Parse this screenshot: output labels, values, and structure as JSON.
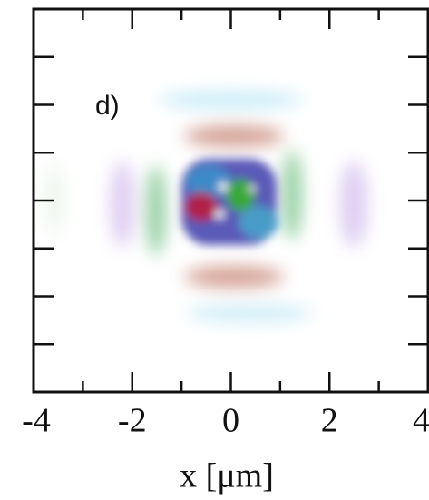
{
  "chart_data": {
    "type": "image",
    "annotation": "d)",
    "xlabel": "x [μm]",
    "xlim": [
      -4,
      4
    ],
    "ylim": [
      -4,
      4
    ],
    "xticks": [
      -4,
      -2,
      0,
      2,
      4
    ],
    "xminorticks": [
      -3,
      -1,
      1,
      3
    ],
    "yticks": [
      -3,
      -2,
      -1,
      0,
      1,
      2,
      3
    ]
  }
}
